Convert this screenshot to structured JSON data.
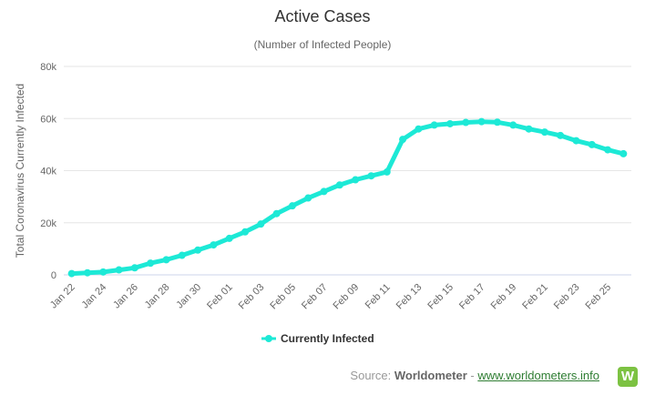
{
  "chart_data": {
    "type": "line",
    "title": "Active Cases",
    "subtitle": "(Number of Infected People)",
    "ylabel": "Total Coronavirus Currently Infected",
    "xlabel": "",
    "ylim": [
      0,
      80000
    ],
    "y_ticks": [
      0,
      20000,
      40000,
      60000,
      80000
    ],
    "y_tick_labels": [
      "0",
      "20k",
      "40k",
      "60k",
      "80k"
    ],
    "categories": [
      "Jan 22",
      "Jan 23",
      "Jan 24",
      "Jan 25",
      "Jan 26",
      "Jan 27",
      "Jan 28",
      "Jan 29",
      "Jan 30",
      "Jan 31",
      "Feb 01",
      "Feb 02",
      "Feb 03",
      "Feb 04",
      "Feb 05",
      "Feb 06",
      "Feb 07",
      "Feb 08",
      "Feb 09",
      "Feb 10",
      "Feb 11",
      "Feb 12",
      "Feb 13",
      "Feb 14",
      "Feb 15",
      "Feb 16",
      "Feb 17",
      "Feb 18",
      "Feb 19",
      "Feb 20",
      "Feb 21",
      "Feb 22",
      "Feb 23",
      "Feb 24",
      "Feb 25",
      "Feb 26"
    ],
    "x_tick_labels": [
      "Jan 22",
      "Jan 24",
      "Jan 26",
      "Jan 28",
      "Jan 30",
      "Feb 01",
      "Feb 03",
      "Feb 05",
      "Feb 07",
      "Feb 09",
      "Feb 11",
      "Feb 13",
      "Feb 15",
      "Feb 17",
      "Feb 19",
      "Feb 21",
      "Feb 23",
      "Feb 25"
    ],
    "series": [
      {
        "name": "Currently Infected",
        "color": "#1de9d6",
        "values": [
          500,
          800,
          1100,
          1900,
          2700,
          4500,
          5800,
          7500,
          9500,
          11500,
          14000,
          16500,
          19500,
          23500,
          26500,
          29500,
          32000,
          34500,
          36500,
          38000,
          39500,
          52000,
          56000,
          57500,
          58000,
          58500,
          58800,
          58600,
          57500,
          56000,
          54800,
          53500,
          51500,
          50000,
          48000,
          46500
        ]
      }
    ],
    "grid": true,
    "legend_position": "bottom-center"
  },
  "source": {
    "prefix": "Source: ",
    "name": "Worldometer",
    "separator": " - ",
    "link": "www.worldometers.info",
    "logo_letter": "W"
  }
}
